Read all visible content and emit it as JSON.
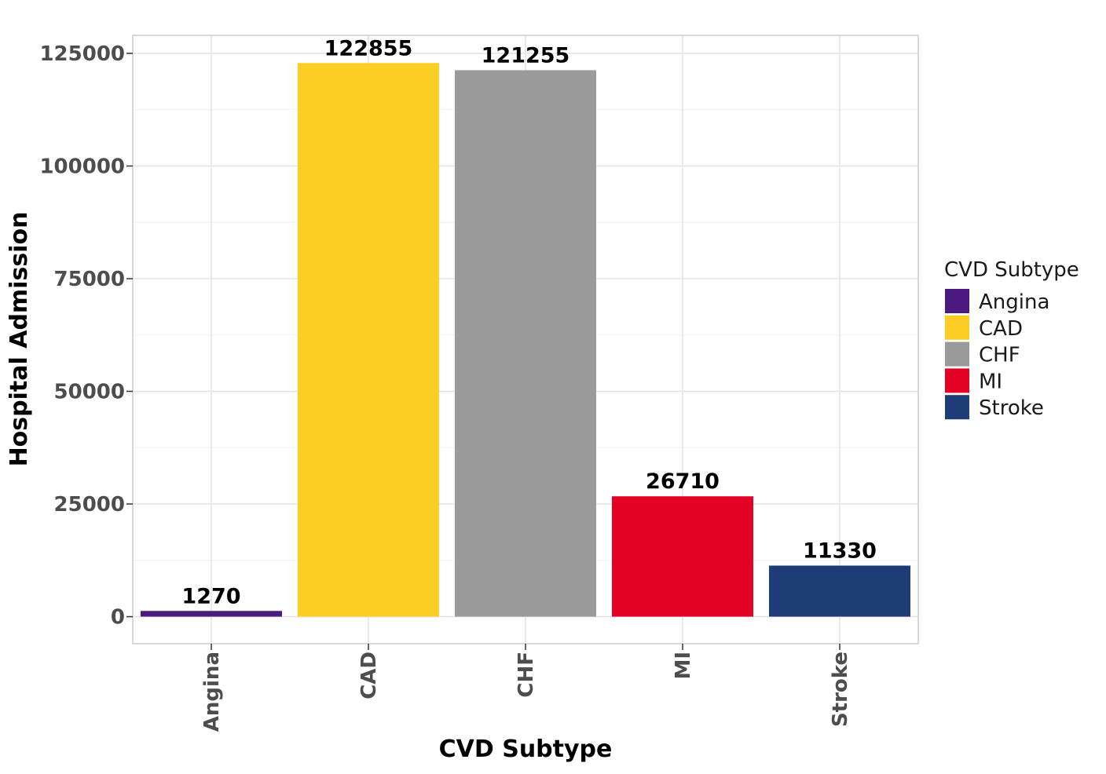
{
  "chart_data": {
    "type": "bar",
    "categories": [
      "Angina",
      "CAD",
      "CHF",
      "MI",
      "Stroke"
    ],
    "values": [
      1270,
      122855,
      121255,
      26710,
      11330
    ],
    "data_labels": [
      "1270",
      "122855",
      "121255",
      "26710",
      "11330"
    ],
    "colors": [
      "#4b1a7f",
      "#fbcd25",
      "#9a9a9a",
      "#e40126",
      "#1e3d78"
    ],
    "xlabel": "CVD Subtype",
    "ylabel": "Hospital Admission",
    "ylim": [
      -6000,
      129000
    ],
    "yticks": [
      0,
      25000,
      50000,
      75000,
      100000,
      125000
    ],
    "ytick_labels": [
      "0",
      "25000",
      "50000",
      "75000",
      "100000",
      "125000"
    ],
    "grid": true,
    "legend": {
      "title": "CVD Subtype",
      "position": "right",
      "items": [
        "Angina",
        "CAD",
        "CHF",
        "MI",
        "Stroke"
      ]
    }
  }
}
